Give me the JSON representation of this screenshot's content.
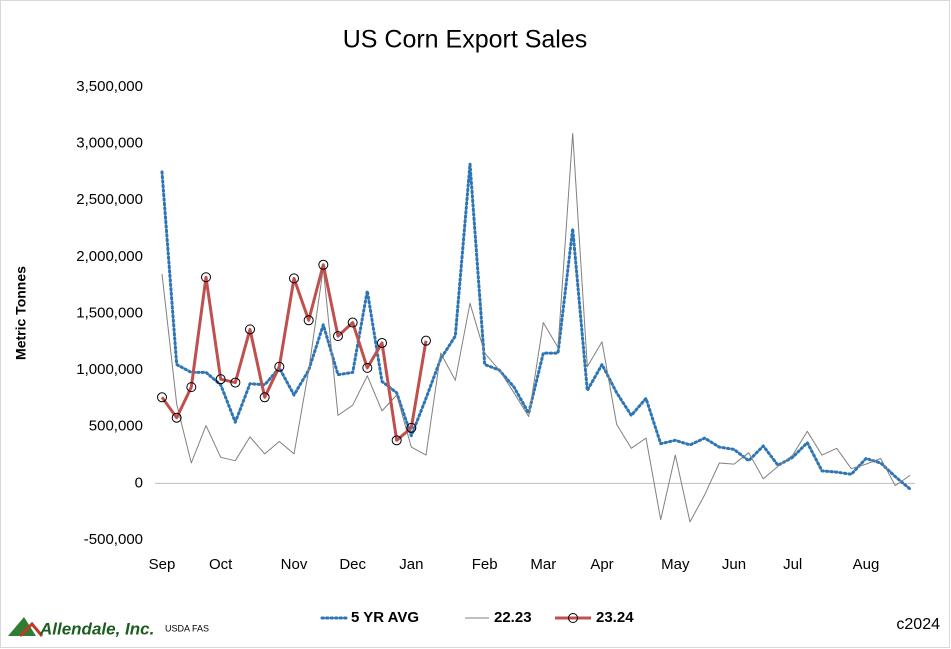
{
  "chart_data": {
    "type": "line",
    "title": "US Corn Export Sales",
    "y_label": "Metric Tonnes",
    "source": "USDA FAS",
    "copyright": "c2024",
    "logo": "Allendale, Inc.",
    "categories": [
      "Sep",
      null,
      null,
      null,
      "Oct",
      null,
      null,
      null,
      null,
      "Nov",
      null,
      null,
      null,
      "Dec",
      null,
      null,
      null,
      "Jan",
      null,
      null,
      null,
      null,
      "Feb",
      null,
      null,
      null,
      "Mar",
      null,
      null,
      null,
      "Apr",
      null,
      null,
      null,
      null,
      "May",
      null,
      null,
      null,
      "Jun",
      null,
      null,
      null,
      "Jul",
      null,
      null,
      null,
      null,
      "Aug",
      null,
      null,
      null
    ],
    "series": [
      {
        "name": "5 YR AVG",
        "color": "#2e75b6",
        "style": "dotted",
        "values": [
          2750000,
          1050000,
          980000,
          980000,
          870000,
          540000,
          880000,
          870000,
          1020000,
          780000,
          1000000,
          1400000,
          960000,
          980000,
          1700000,
          900000,
          800000,
          420000,
          750000,
          1100000,
          1300000,
          2820000,
          1050000,
          1000000,
          850000,
          620000,
          1150000,
          1150000,
          2250000,
          820000,
          1050000,
          800000,
          600000,
          750000,
          350000,
          380000,
          340000,
          400000,
          320000,
          300000,
          200000,
          330000,
          160000,
          230000,
          360000,
          110000,
          100000,
          80000,
          220000,
          180000,
          60000,
          -50000
        ]
      },
      {
        "name": "22.23",
        "color": "#808080",
        "style": "thin",
        "values": [
          1850000,
          700000,
          180000,
          510000,
          230000,
          200000,
          410000,
          260000,
          370000,
          260000,
          1000000,
          1900000,
          600000,
          690000,
          950000,
          640000,
          780000,
          320000,
          250000,
          1150000,
          910000,
          1590000,
          1150000,
          1000000,
          800000,
          590000,
          1420000,
          1200000,
          3090000,
          1030000,
          1250000,
          520000,
          310000,
          400000,
          -320000,
          250000,
          -340000,
          -100000,
          180000,
          170000,
          270000,
          40000,
          150000,
          250000,
          460000,
          250000,
          310000,
          130000,
          170000,
          220000,
          -20000,
          70000
        ]
      },
      {
        "name": "23.24",
        "color": "#c0504d",
        "style": "marker",
        "values": [
          760000,
          580000,
          850000,
          1820000,
          920000,
          890000,
          1360000,
          760000,
          1030000,
          1810000,
          1440000,
          1930000,
          1300000,
          1420000,
          1020000,
          1240000,
          380000,
          490000,
          1260000,
          null,
          null,
          null,
          null,
          null,
          null,
          null,
          null,
          null,
          null,
          null,
          null,
          null,
          null,
          null,
          null,
          null,
          null,
          null,
          null,
          null,
          null,
          null,
          null,
          null,
          null,
          null,
          null,
          null,
          null,
          null,
          null,
          null
        ]
      }
    ],
    "ylim": [
      -500000,
      3500000
    ],
    "yticks": [
      {
        "value": -500000,
        "label": "-500,000"
      },
      0,
      {
        "value": 500000,
        "label": "500,000"
      },
      {
        "value": 1000000,
        "label": "1,000,000"
      },
      {
        "value": 1500000,
        "label": "1,500,000"
      },
      {
        "value": 2000000,
        "label": "2,000,000"
      },
      {
        "value": 2500000,
        "label": "2,500,000"
      },
      {
        "value": 3000000,
        "label": "3,000,000"
      },
      {
        "value": 3500000,
        "label": "3,500,000"
      }
    ],
    "grid": false,
    "legend": "bottom"
  }
}
